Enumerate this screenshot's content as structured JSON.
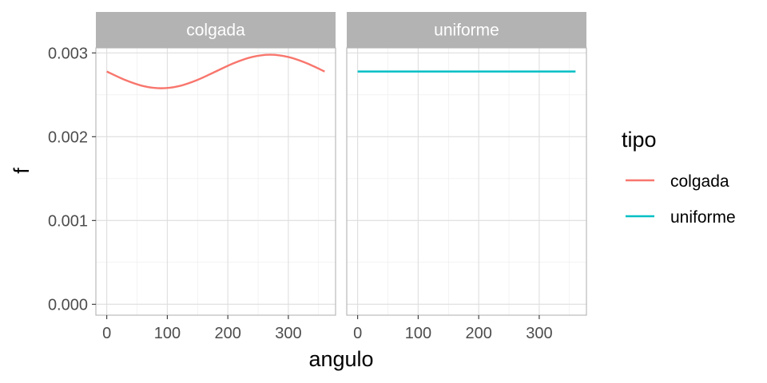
{
  "chart_data": {
    "type": "line",
    "xlabel": "angulo",
    "ylabel": "f",
    "xlim": [
      -18,
      378
    ],
    "ylim": [
      -0.00013,
      0.00306
    ],
    "x_ticks": [
      0,
      100,
      200,
      300
    ],
    "x_tick_labels": [
      "0",
      "100",
      "200",
      "300"
    ],
    "y_ticks": [
      0,
      0.001,
      0.002,
      0.003
    ],
    "y_tick_labels": [
      "0.000",
      "0.001",
      "0.002",
      "0.003"
    ],
    "grid": true,
    "legend": {
      "title": "tipo",
      "position": "right",
      "entries": [
        {
          "label": "colgada",
          "color": "#F8766D"
        },
        {
          "label": "uniforme",
          "color": "#00BFC4"
        }
      ]
    },
    "panels": [
      {
        "strip": "colgada",
        "color": "#F8766D",
        "x": [
          0,
          30,
          60,
          90,
          120,
          150,
          180,
          210,
          240,
          270,
          300,
          330,
          360
        ],
        "y": [
          0.002778,
          0.002678,
          0.002605,
          0.002578,
          0.002605,
          0.002678,
          0.002778,
          0.002878,
          0.002951,
          0.002978,
          0.002951,
          0.002878,
          0.002778
        ]
      },
      {
        "strip": "uniforme",
        "color": "#00BFC4",
        "x": [
          0,
          360
        ],
        "y": [
          0.002778,
          0.002778
        ]
      }
    ]
  }
}
